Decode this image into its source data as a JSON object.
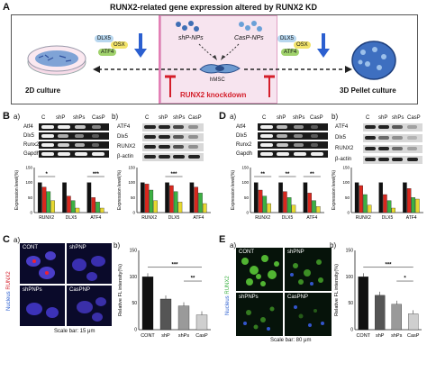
{
  "panel_a": {
    "letter": "A",
    "title": "RUNX2-related gene expression altered by RUNX2 KD",
    "genes": [
      "DLX5",
      "OSX",
      "ATF4"
    ],
    "np_labels": [
      "shP-NPs",
      "CasP-NPs"
    ],
    "center_cell": "hMSC",
    "knockdown_label": "RUNX2 knockdown",
    "left_label": "2D culture",
    "right_label": "3D Pellet culture"
  },
  "panel_b": {
    "letter": "B",
    "sub_a": "a)",
    "sub_b": "b)",
    "lanes": [
      "C",
      "shP",
      "shPs",
      "CasP"
    ],
    "rt_genes": [
      "Atf4",
      "Dlx5",
      "Runx2",
      "Gapdh"
    ],
    "wb_genes": [
      "ATF4",
      "Dlx5",
      "RUNX2",
      "β-actin"
    ],
    "sig_a": [
      "*",
      "***"
    ],
    "sig_b": [
      "***"
    ],
    "ylabel": "Expression level(%)"
  },
  "panel_d": {
    "letter": "D",
    "sub_a": "a)",
    "sub_b": "b)",
    "lanes": [
      "C",
      "shP",
      "shPs",
      "CasP"
    ],
    "rt_genes": [
      "Atf4",
      "Dlx5",
      "Runx2",
      "Gapdh"
    ],
    "wb_genes": [
      "ATF4",
      "Dlx5",
      "RUNX2",
      "β-actin"
    ],
    "sig_a": [
      "**",
      "**",
      "**"
    ],
    "ylabel": "Expression level(%)"
  },
  "panel_c": {
    "letter": "C",
    "sub_a": "a)",
    "sub_b": "b)",
    "stain_nucleus": "Nucleus",
    "stain_marker": "RUNX2",
    "images": [
      "CONT",
      "shPNP",
      "shPNPs",
      "CasPNP"
    ],
    "scale_bar": "Scale bar: 15 μm",
    "ylabel": "Relative FL intensity(%)",
    "sig": [
      "***",
      "**"
    ]
  },
  "panel_e": {
    "letter": "E",
    "sub_a": "a)",
    "sub_b": "b)",
    "stain_nucleus": "Nucleus",
    "stain_marker": "RUNX2",
    "images": [
      "CONT",
      "shPNP",
      "shPNPs",
      "CasPNP"
    ],
    "scale_bar": "Scale bar: 80 μm",
    "ylabel": "Relative FL intensity(%)",
    "sig": [
      "***",
      "*"
    ]
  },
  "colors": {
    "C": "#111111",
    "shP": "#d9281e",
    "shPs": "#3cb043",
    "CasP": "#e6d830",
    "accent_blue": "#2b5fd0",
    "knockdown_red": "#d41e2a"
  },
  "chart_data": [
    {
      "type": "bar",
      "id": "B_a",
      "categories": [
        "RUNX2",
        "DLX5",
        "ATF4"
      ],
      "series": [
        {
          "name": "C",
          "values": [
            100,
            100,
            100
          ]
        },
        {
          "name": "shP",
          "values": [
            85,
            55,
            50
          ]
        },
        {
          "name": "shPs",
          "values": [
            70,
            40,
            35
          ]
        },
        {
          "name": "CasP",
          "values": [
            40,
            15,
            15
          ]
        }
      ],
      "ylim": [
        0,
        150
      ],
      "yticks": [
        0,
        50,
        100,
        150
      ],
      "ylabel": "Expression level(%)"
    },
    {
      "type": "bar",
      "id": "B_b",
      "categories": [
        "RUNX2",
        "DLX5",
        "ATF4"
      ],
      "series": [
        {
          "name": "C",
          "values": [
            100,
            100,
            100
          ]
        },
        {
          "name": "shP",
          "values": [
            95,
            90,
            85
          ]
        },
        {
          "name": "shPs",
          "values": [
            75,
            70,
            65
          ]
        },
        {
          "name": "CasP",
          "values": [
            40,
            35,
            30
          ]
        }
      ],
      "ylim": [
        0,
        150
      ],
      "yticks": [
        0,
        50,
        100,
        150
      ],
      "ylabel": "Expression level(%)"
    },
    {
      "type": "bar",
      "id": "D_a",
      "categories": [
        "RUNX2",
        "DLX5",
        "ATF4"
      ],
      "series": [
        {
          "name": "C",
          "values": [
            100,
            100,
            100
          ]
        },
        {
          "name": "shP",
          "values": [
            75,
            70,
            65
          ]
        },
        {
          "name": "shPs",
          "values": [
            55,
            50,
            40
          ]
        },
        {
          "name": "CasP",
          "values": [
            30,
            25,
            20
          ]
        }
      ],
      "ylim": [
        0,
        150
      ],
      "yticks": [
        0,
        50,
        100,
        150
      ],
      "ylabel": "Expression level(%)"
    },
    {
      "type": "bar",
      "id": "D_b",
      "categories": [
        "RUNX2",
        "DLX5",
        "ATF4"
      ],
      "series": [
        {
          "name": "C",
          "values": [
            100,
            100,
            100
          ]
        },
        {
          "name": "shP",
          "values": [
            90,
            60,
            80
          ]
        },
        {
          "name": "shPs",
          "values": [
            60,
            40,
            50
          ]
        },
        {
          "name": "CasP",
          "values": [
            25,
            15,
            45
          ]
        }
      ],
      "ylim": [
        0,
        150
      ],
      "yticks": [
        0,
        50,
        100,
        150
      ],
      "ylabel": "Expression level(%)"
    },
    {
      "type": "bar",
      "id": "C_b",
      "categories": [
        "CONT",
        "shP",
        "shPs",
        "CasP"
      ],
      "values": [
        100,
        58,
        45,
        28
      ],
      "ylim": [
        0,
        150
      ],
      "yticks": [
        0,
        50,
        100,
        150
      ],
      "ylabel": "Relative FL intensity(%)"
    },
    {
      "type": "bar",
      "id": "E_b",
      "categories": [
        "CONT",
        "shP",
        "shPs",
        "CasP"
      ],
      "values": [
        100,
        65,
        48,
        30
      ],
      "ylim": [
        0,
        150
      ],
      "yticks": [
        0,
        50,
        100,
        150
      ],
      "ylabel": "Relative FL intensity(%)"
    }
  ]
}
